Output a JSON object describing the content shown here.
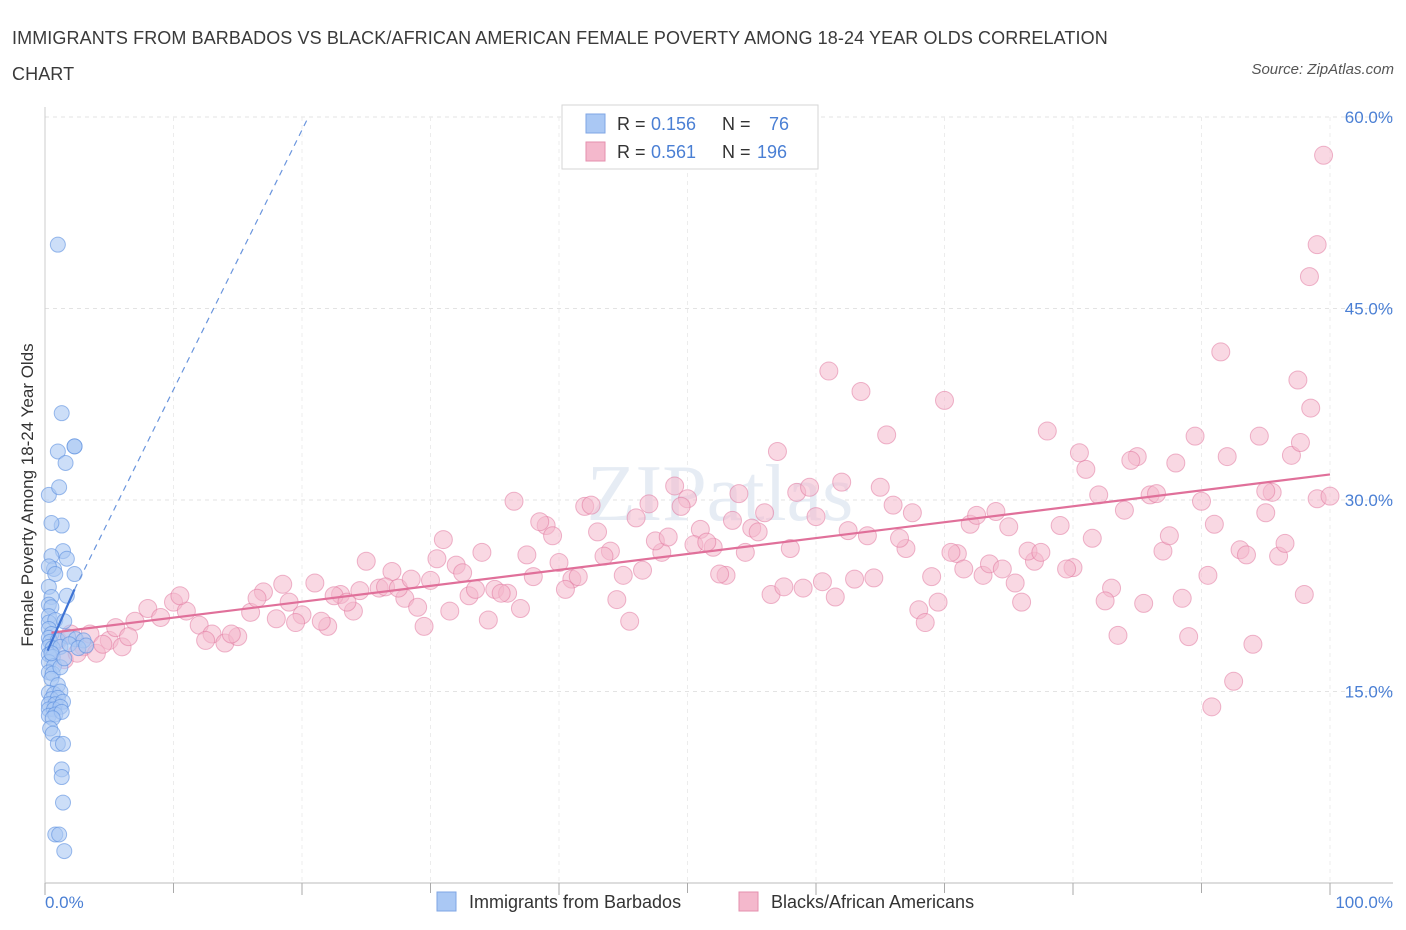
{
  "title": "IMMIGRANTS FROM BARBADOS VS BLACK/AFRICAN AMERICAN FEMALE POVERTY AMONG 18-24 YEAR OLDS CORRELATION CHART",
  "source": "Source: ZipAtlas.com",
  "watermark": "ZIPatlas",
  "colors": {
    "blue": "#5b8fe0",
    "blue_fill": "#aac8f4",
    "pink": "#e0709a",
    "pink_fill": "#f4b8cc",
    "tick_label": "#4a7fd4"
  },
  "chart_data": {
    "type": "scatter",
    "xlabel": "",
    "ylabel": "Female Poverty Among 18-24 Year Olds",
    "xlim": [
      0,
      100
    ],
    "ylim": [
      0,
      60
    ],
    "x_tick_labels": [
      "0.0%",
      "100.0%"
    ],
    "y_ticks": [
      15,
      30,
      45,
      60
    ],
    "y_tick_labels": [
      "15.0%",
      "30.0%",
      "45.0%",
      "60.0%"
    ],
    "grid": true,
    "legend_placement": "top-center",
    "stats": [
      {
        "r_label": "R =",
        "r_value": "0.156",
        "n_label": "N =",
        "n_value": "76"
      },
      {
        "r_label": "R =",
        "r_value": "0.561",
        "n_label": "N =",
        "n_value": "196"
      }
    ],
    "series": [
      {
        "name": "Immigrants from Barbados",
        "trend": {
          "solid": [
            [
              0.2,
              18.2
            ],
            [
              2.3,
              23.0
            ]
          ],
          "dashed": [
            [
              2.3,
              23.0
            ],
            [
              20.5,
              60.0
            ]
          ]
        },
        "points": [
          [
            1.0,
            50.0
          ],
          [
            1.3,
            36.8
          ],
          [
            2.3,
            34.2
          ],
          [
            2.3,
            34.2
          ],
          [
            1.0,
            33.8
          ],
          [
            1.6,
            32.9
          ],
          [
            0.3,
            30.4
          ],
          [
            1.1,
            31.0
          ],
          [
            1.3,
            28.0
          ],
          [
            0.5,
            28.2
          ],
          [
            1.4,
            26.0
          ],
          [
            0.5,
            25.6
          ],
          [
            1.7,
            25.4
          ],
          [
            0.7,
            24.6
          ],
          [
            2.3,
            24.2
          ],
          [
            0.3,
            24.8
          ],
          [
            0.8,
            24.2
          ],
          [
            0.3,
            23.2
          ],
          [
            0.5,
            22.4
          ],
          [
            1.7,
            22.5
          ],
          [
            0.3,
            21.8
          ],
          [
            0.5,
            21.6
          ],
          [
            0.3,
            20.9
          ],
          [
            0.3,
            20.4
          ],
          [
            0.8,
            20.6
          ],
          [
            1.5,
            20.5
          ],
          [
            0.3,
            19.9
          ],
          [
            0.5,
            19.5
          ],
          [
            0.3,
            19.2
          ],
          [
            0.4,
            18.9
          ],
          [
            1.0,
            19.0
          ],
          [
            1.8,
            19.3
          ],
          [
            2.4,
            19.1
          ],
          [
            3.0,
            19.0
          ],
          [
            0.3,
            18.5
          ],
          [
            0.6,
            18.4
          ],
          [
            1.2,
            18.5
          ],
          [
            1.9,
            18.7
          ],
          [
            2.6,
            18.4
          ],
          [
            3.2,
            18.6
          ],
          [
            0.3,
            17.9
          ],
          [
            0.6,
            17.7
          ],
          [
            0.3,
            17.3
          ],
          [
            0.7,
            17.0
          ],
          [
            0.3,
            16.5
          ],
          [
            0.6,
            16.4
          ],
          [
            1.2,
            16.9
          ],
          [
            0.5,
            16.0
          ],
          [
            1.0,
            15.5
          ],
          [
            0.3,
            14.9
          ],
          [
            0.7,
            14.8
          ],
          [
            1.2,
            15.0
          ],
          [
            0.5,
            14.4
          ],
          [
            1.0,
            14.5
          ],
          [
            0.3,
            14.0
          ],
          [
            0.8,
            14.0
          ],
          [
            1.4,
            14.2
          ],
          [
            0.3,
            13.6
          ],
          [
            0.7,
            13.6
          ],
          [
            1.2,
            13.8
          ],
          [
            0.3,
            13.1
          ],
          [
            0.8,
            13.2
          ],
          [
            1.3,
            13.4
          ],
          [
            0.6,
            12.9
          ],
          [
            0.4,
            12.1
          ],
          [
            0.6,
            11.7
          ],
          [
            1.0,
            10.9
          ],
          [
            1.4,
            10.9
          ],
          [
            1.3,
            8.9
          ],
          [
            1.3,
            8.3
          ],
          [
            1.4,
            6.3
          ],
          [
            0.8,
            3.8
          ],
          [
            1.1,
            3.8
          ],
          [
            1.5,
            2.5
          ],
          [
            0.5,
            18.0
          ],
          [
            1.5,
            17.6
          ]
        ]
      },
      {
        "name": "Blacks/African Americans",
        "trend": {
          "solid": [
            [
              0.5,
              19.6
            ],
            [
              100.0,
              32.0
            ]
          ]
        },
        "points": [
          [
            1.0,
            19.0
          ],
          [
            2.0,
            19.5
          ],
          [
            3.0,
            18.5
          ],
          [
            4.0,
            18.0
          ],
          [
            5.0,
            19.0
          ],
          [
            6.0,
            18.5
          ],
          [
            7.0,
            20.5
          ],
          [
            1.5,
            17.5
          ],
          [
            2.5,
            18.0
          ],
          [
            3.5,
            19.5
          ],
          [
            4.5,
            18.7
          ],
          [
            5.5,
            20.0
          ],
          [
            6.5,
            19.3
          ],
          [
            8.0,
            21.5
          ],
          [
            9.0,
            20.8
          ],
          [
            10.0,
            22.0
          ],
          [
            11.0,
            21.3
          ],
          [
            12.0,
            20.2
          ],
          [
            13.0,
            19.5
          ],
          [
            14.0,
            18.8
          ],
          [
            15.0,
            19.3
          ],
          [
            16.0,
            21.2
          ],
          [
            17.0,
            22.8
          ],
          [
            18.0,
            20.7
          ],
          [
            19.0,
            22.0
          ],
          [
            20.0,
            21.0
          ],
          [
            21.0,
            23.5
          ],
          [
            22.0,
            20.1
          ],
          [
            23.0,
            22.6
          ],
          [
            24.0,
            21.3
          ],
          [
            25.0,
            25.2
          ],
          [
            26.0,
            23.1
          ],
          [
            27.0,
            24.4
          ],
          [
            28.0,
            22.3
          ],
          [
            29.0,
            21.6
          ],
          [
            30.0,
            23.7
          ],
          [
            31.0,
            26.9
          ],
          [
            32.0,
            24.9
          ],
          [
            33.0,
            22.5
          ],
          [
            34.0,
            25.9
          ],
          [
            35.0,
            23.0
          ],
          [
            36.0,
            22.7
          ],
          [
            37.0,
            21.5
          ],
          [
            38.0,
            24.0
          ],
          [
            39.0,
            28.0
          ],
          [
            40.0,
            25.1
          ],
          [
            41.0,
            23.8
          ],
          [
            42.0,
            29.5
          ],
          [
            43.0,
            27.5
          ],
          [
            44.0,
            26.0
          ],
          [
            45.0,
            24.1
          ],
          [
            46.0,
            28.6
          ],
          [
            47.0,
            29.7
          ],
          [
            48.0,
            25.9
          ],
          [
            49.0,
            31.1
          ],
          [
            50.0,
            30.1
          ],
          [
            51.0,
            27.7
          ],
          [
            52.0,
            26.3
          ],
          [
            53.0,
            24.1
          ],
          [
            54.0,
            30.5
          ],
          [
            55.0,
            27.8
          ],
          [
            56.0,
            29.0
          ],
          [
            57.0,
            33.8
          ],
          [
            58.0,
            26.2
          ],
          [
            59.0,
            23.1
          ],
          [
            60.0,
            28.7
          ],
          [
            61.0,
            40.1
          ],
          [
            62.0,
            31.4
          ],
          [
            63.0,
            23.8
          ],
          [
            64.0,
            27.2
          ],
          [
            65.0,
            31.0
          ],
          [
            66.0,
            29.6
          ],
          [
            67.0,
            26.2
          ],
          [
            68.0,
            21.4
          ],
          [
            69.0,
            24.0
          ],
          [
            70.0,
            37.8
          ],
          [
            71.0,
            25.8
          ],
          [
            72.0,
            28.1
          ],
          [
            73.0,
            24.1
          ],
          [
            74.0,
            29.1
          ],
          [
            75.0,
            27.9
          ],
          [
            76.0,
            22.0
          ],
          [
            77.0,
            25.2
          ],
          [
            78.0,
            35.4
          ],
          [
            79.0,
            28.0
          ],
          [
            80.0,
            24.7
          ],
          [
            81.0,
            32.4
          ],
          [
            82.0,
            30.4
          ],
          [
            83.0,
            23.1
          ],
          [
            84.0,
            29.2
          ],
          [
            85.0,
            33.4
          ],
          [
            86.0,
            30.4
          ],
          [
            87.0,
            26.0
          ],
          [
            88.0,
            32.9
          ],
          [
            89.0,
            19.3
          ],
          [
            90.0,
            29.9
          ],
          [
            91.0,
            28.1
          ],
          [
            92.0,
            33.4
          ],
          [
            93.0,
            26.1
          ],
          [
            94.0,
            18.7
          ],
          [
            95.0,
            29.0
          ],
          [
            96.0,
            25.6
          ],
          [
            97.0,
            33.5
          ],
          [
            98.0,
            22.6
          ],
          [
            99.0,
            30.1
          ],
          [
            10.5,
            22.5
          ],
          [
            12.5,
            19.0
          ],
          [
            14.5,
            19.5
          ],
          [
            16.5,
            22.3
          ],
          [
            18.5,
            23.4
          ],
          [
            19.5,
            20.4
          ],
          [
            21.5,
            20.5
          ],
          [
            22.5,
            22.5
          ],
          [
            23.5,
            22.0
          ],
          [
            24.5,
            22.9
          ],
          [
            26.5,
            23.2
          ],
          [
            27.5,
            23.1
          ],
          [
            28.5,
            23.8
          ],
          [
            29.5,
            20.1
          ],
          [
            30.5,
            25.4
          ],
          [
            31.5,
            21.3
          ],
          [
            32.5,
            24.3
          ],
          [
            33.5,
            23.0
          ],
          [
            34.5,
            20.6
          ],
          [
            35.5,
            22.7
          ],
          [
            36.5,
            29.9
          ],
          [
            37.5,
            25.7
          ],
          [
            38.5,
            28.3
          ],
          [
            39.5,
            27.2
          ],
          [
            40.5,
            23.0
          ],
          [
            41.5,
            24.0
          ],
          [
            42.5,
            29.6
          ],
          [
            43.5,
            25.6
          ],
          [
            44.5,
            22.2
          ],
          [
            45.5,
            20.5
          ],
          [
            46.5,
            24.5
          ],
          [
            47.5,
            26.8
          ],
          [
            48.5,
            27.1
          ],
          [
            49.5,
            29.5
          ],
          [
            50.5,
            26.5
          ],
          [
            51.5,
            26.7
          ],
          [
            52.5,
            24.2
          ],
          [
            53.5,
            28.4
          ],
          [
            54.5,
            25.9
          ],
          [
            55.5,
            27.5
          ],
          [
            56.5,
            22.6
          ],
          [
            57.5,
            23.2
          ],
          [
            58.5,
            30.6
          ],
          [
            59.5,
            31.0
          ],
          [
            60.5,
            23.6
          ],
          [
            61.5,
            22.4
          ],
          [
            62.5,
            27.6
          ],
          [
            63.5,
            38.5
          ],
          [
            64.5,
            23.9
          ],
          [
            65.5,
            35.1
          ],
          [
            66.5,
            27.0
          ],
          [
            67.5,
            29.0
          ],
          [
            68.5,
            20.4
          ],
          [
            69.5,
            22.0
          ],
          [
            70.5,
            25.9
          ],
          [
            71.5,
            24.6
          ],
          [
            72.5,
            28.8
          ],
          [
            73.5,
            25.0
          ],
          [
            74.5,
            24.6
          ],
          [
            75.5,
            23.5
          ],
          [
            76.5,
            26.0
          ],
          [
            77.5,
            25.9
          ],
          [
            79.5,
            24.6
          ],
          [
            80.5,
            33.7
          ],
          [
            81.5,
            27.0
          ],
          [
            82.5,
            22.1
          ],
          [
            83.5,
            19.4
          ],
          [
            84.5,
            33.1
          ],
          [
            85.5,
            21.9
          ],
          [
            86.5,
            30.5
          ],
          [
            87.5,
            27.2
          ],
          [
            88.5,
            22.3
          ],
          [
            89.5,
            35.0
          ],
          [
            90.5,
            24.1
          ],
          [
            91.5,
            41.6
          ],
          [
            92.5,
            15.8
          ],
          [
            93.5,
            25.7
          ],
          [
            94.5,
            35.0
          ],
          [
            95.5,
            30.6
          ],
          [
            96.5,
            26.6
          ],
          [
            97.5,
            39.4
          ],
          [
            98.5,
            37.2
          ],
          [
            99.5,
            57.0
          ],
          [
            90.8,
            13.8
          ],
          [
            95.0,
            30.7
          ],
          [
            97.7,
            34.5
          ],
          [
            99.0,
            50.0
          ],
          [
            98.4,
            47.5
          ],
          [
            100.0,
            30.3
          ]
        ]
      }
    ]
  }
}
